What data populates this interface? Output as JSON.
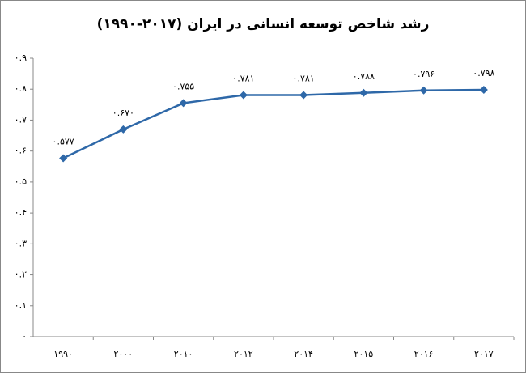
{
  "chart_data": {
    "type": "line",
    "title": "رشد شاخص توسعه انسانی در ایران (۲۰۱۷-۱۹۹۰)",
    "categories": [
      "۱۹۹۰",
      "۲۰۰۰",
      "۲۰۱۰",
      "۲۰۱۲",
      "۲۰۱۴",
      "۲۰۱۵",
      "۲۰۱۶",
      "۲۰۱۷"
    ],
    "values": [
      0.577,
      0.67,
      0.755,
      0.781,
      0.781,
      0.788,
      0.796,
      0.798
    ],
    "value_labels": [
      "۰.۵۷۷",
      "۰.۶۷۰",
      "۰.۷۵۵",
      "۰.۷۸۱",
      "۰.۷۸۱",
      "۰.۷۸۸",
      "۰.۷۹۶",
      "۰.۷۹۸"
    ],
    "color": "#2e68a8",
    "ylim": [
      0,
      0.9
    ],
    "yticks": [
      {
        "value": 0,
        "label": "۰"
      },
      {
        "value": 0.1,
        "label": "۰.۱"
      },
      {
        "value": 0.2,
        "label": "۰.۲"
      },
      {
        "value": 0.3,
        "label": "۰.۳"
      },
      {
        "value": 0.4,
        "label": "۰.۴"
      },
      {
        "value": 0.5,
        "label": "۰.۵"
      },
      {
        "value": 0.6,
        "label": "۰.۶"
      },
      {
        "value": 0.7,
        "label": "۰.۷"
      },
      {
        "value": 0.8,
        "label": "۰.۸"
      },
      {
        "value": 0.9,
        "label": "۰.۹"
      }
    ],
    "grid": false
  }
}
